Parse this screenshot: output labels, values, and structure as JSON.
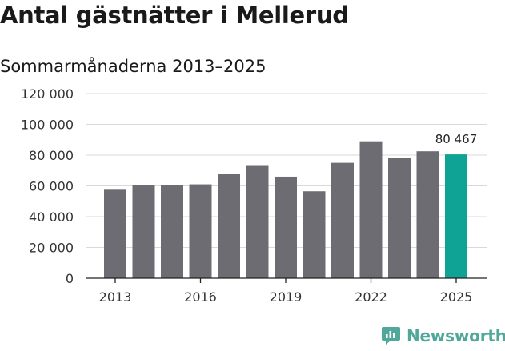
{
  "header": {
    "title": "Antal gästnätter i Mellerud",
    "subtitle": "Sommarmånaderna 2013–2025"
  },
  "brand": {
    "name": "Newsworthy",
    "icon": "newsworthy-logo-icon",
    "color": "#4fa89a"
  },
  "colors": {
    "bar": "#6d6c72",
    "highlight": "#0ea394",
    "grid": "#d9d9d9"
  },
  "chart_data": {
    "type": "bar",
    "categories": [
      "2013",
      "2014",
      "2015",
      "2016",
      "2017",
      "2018",
      "2019",
      "2020",
      "2021",
      "2022",
      "2023",
      "2024",
      "2025"
    ],
    "values": [
      57500,
      60500,
      60500,
      61000,
      68000,
      73500,
      66000,
      56500,
      75000,
      89000,
      78000,
      82500,
      80467
    ],
    "highlight_index": 12,
    "data_labels": [
      {
        "index": 12,
        "text": "80 467"
      }
    ],
    "x_tick_labels": [
      {
        "category": "2013",
        "text": "2013"
      },
      {
        "category": "2016",
        "text": "2016"
      },
      {
        "category": "2019",
        "text": "2019"
      },
      {
        "category": "2022",
        "text": "2022"
      },
      {
        "category": "2025",
        "text": "2025"
      }
    ],
    "y_ticks": [
      {
        "value": 0,
        "label": "0"
      },
      {
        "value": 20000,
        "label": "20 000"
      },
      {
        "value": 40000,
        "label": "40 000"
      },
      {
        "value": 60000,
        "label": "60 000"
      },
      {
        "value": 80000,
        "label": "80 000"
      },
      {
        "value": 100000,
        "label": "100 000"
      },
      {
        "value": 120000,
        "label": "120 000"
      }
    ],
    "ylim": [
      0,
      120000
    ],
    "grid": true,
    "legend": "none",
    "xlabel": "",
    "ylabel": ""
  }
}
